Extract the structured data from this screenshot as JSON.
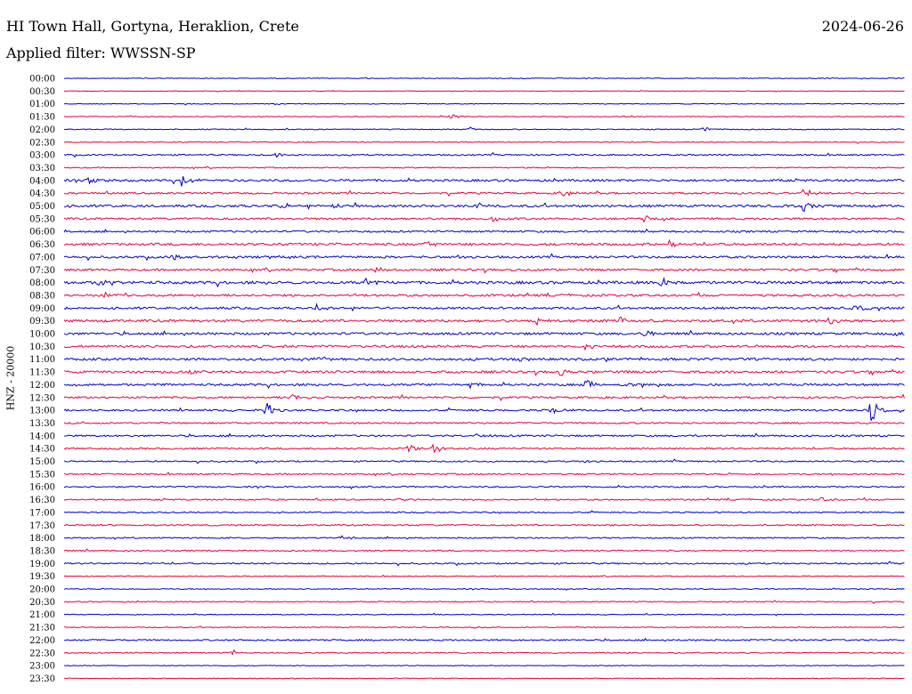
{
  "header": {
    "station": "HI Town Hall, Gortyna, Heraklion, Crete",
    "date": "2024-06-26",
    "filter": "Applied filter: WWSSN-SP"
  },
  "chart_data": {
    "type": "line",
    "title": "HI Town Hall, Gortyna, Heraklion, Crete",
    "date": "2024-06-26",
    "filter": "WWSSN-SP",
    "channel_label": "HNZ - 20000",
    "row_labels": [
      "00:00",
      "00:30",
      "01:00",
      "01:30",
      "02:00",
      "02:30",
      "03:00",
      "03:30",
      "04:00",
      "04:30",
      "05:00",
      "05:30",
      "06:00",
      "06:30",
      "07:00",
      "07:30",
      "08:00",
      "08:30",
      "09:00",
      "09:30",
      "10:00",
      "10:30",
      "11:00",
      "11:30",
      "12:00",
      "12:30",
      "13:00",
      "13:30",
      "14:00",
      "14:30",
      "15:00",
      "15:30",
      "16:00",
      "16:30",
      "17:00",
      "17:30",
      "18:00",
      "18:30",
      "19:00",
      "19:30",
      "20:00",
      "20:30",
      "21:00",
      "21:30",
      "22:00",
      "22:30",
      "23:00",
      "23:30"
    ],
    "row_colors": [
      "#0000cc",
      "#e8003c"
    ],
    "row_noise": [
      0.4,
      0.3,
      0.4,
      0.4,
      0.5,
      0.5,
      0.8,
      0.6,
      1.2,
      1.0,
      1.3,
      1.1,
      1.0,
      1.3,
      1.2,
      1.2,
      1.5,
      1.2,
      1.2,
      1.4,
      1.3,
      1.3,
      1.3,
      1.3,
      1.2,
      1.1,
      1.0,
      0.9,
      1.0,
      0.9,
      0.8,
      0.8,
      0.8,
      0.8,
      0.7,
      0.8,
      0.7,
      0.7,
      0.8,
      0.5,
      0.5,
      0.6,
      0.5,
      0.5,
      0.8,
      0.6,
      0.4,
      0.4
    ],
    "events": [
      {
        "row": 3,
        "t": 0.46,
        "amp": 3
      },
      {
        "row": 4,
        "t": 0.48,
        "amp": 3
      },
      {
        "row": 4,
        "t": 0.76,
        "amp": 4
      },
      {
        "row": 6,
        "t": 0.25,
        "amp": 3
      },
      {
        "row": 8,
        "t": 0.03,
        "amp": 5
      },
      {
        "row": 8,
        "t": 0.14,
        "amp": 7
      },
      {
        "row": 9,
        "t": 0.59,
        "amp": 6
      },
      {
        "row": 9,
        "t": 0.88,
        "amp": 6
      },
      {
        "row": 10,
        "t": 0.26,
        "amp": 4
      },
      {
        "row": 10,
        "t": 0.32,
        "amp": 4
      },
      {
        "row": 10,
        "t": 0.49,
        "amp": 5
      },
      {
        "row": 10,
        "t": 0.88,
        "amp": 7
      },
      {
        "row": 11,
        "t": 0.51,
        "amp": 4
      },
      {
        "row": 11,
        "t": 0.69,
        "amp": 4
      },
      {
        "row": 13,
        "t": 0.43,
        "amp": 4
      },
      {
        "row": 13,
        "t": 0.72,
        "amp": 4
      },
      {
        "row": 14,
        "t": 0.13,
        "amp": 4
      },
      {
        "row": 14,
        "t": 0.47,
        "amp": 3
      },
      {
        "row": 15,
        "t": 0.37,
        "amp": 4
      },
      {
        "row": 16,
        "t": 0.04,
        "amp": 6
      },
      {
        "row": 16,
        "t": 0.36,
        "amp": 6
      },
      {
        "row": 16,
        "t": 0.71,
        "amp": 7
      },
      {
        "row": 17,
        "t": 0.05,
        "amp": 4
      },
      {
        "row": 18,
        "t": 0.3,
        "amp": 4
      },
      {
        "row": 18,
        "t": 0.94,
        "amp": 5
      },
      {
        "row": 19,
        "t": 0.56,
        "amp": 5
      },
      {
        "row": 19,
        "t": 0.66,
        "amp": 5
      },
      {
        "row": 19,
        "t": 0.91,
        "amp": 5
      },
      {
        "row": 20,
        "t": 0.69,
        "amp": 7
      },
      {
        "row": 20,
        "t": 0.99,
        "amp": 5
      },
      {
        "row": 21,
        "t": 0.62,
        "amp": 5
      },
      {
        "row": 22,
        "t": 0.3,
        "amp": 5
      },
      {
        "row": 22,
        "t": 0.54,
        "amp": 4
      },
      {
        "row": 23,
        "t": 0.15,
        "amp": 4
      },
      {
        "row": 23,
        "t": 0.59,
        "amp": 5
      },
      {
        "row": 24,
        "t": 0.48,
        "amp": 4
      },
      {
        "row": 24,
        "t": 0.62,
        "amp": 7
      },
      {
        "row": 24,
        "t": 0.67,
        "amp": 5
      },
      {
        "row": 25,
        "t": 0.27,
        "amp": 5
      },
      {
        "row": 26,
        "t": 0.24,
        "amp": 9
      },
      {
        "row": 26,
        "t": 0.58,
        "amp": 5
      },
      {
        "row": 26,
        "t": 0.96,
        "amp": 13
      },
      {
        "row": 28,
        "t": 0.49,
        "amp": 3
      },
      {
        "row": 29,
        "t": 0.41,
        "amp": 5
      },
      {
        "row": 29,
        "t": 0.44,
        "amp": 6
      },
      {
        "row": 30,
        "t": 0.62,
        "amp": 3
      },
      {
        "row": 33,
        "t": 0.4,
        "amp": 3
      },
      {
        "row": 33,
        "t": 0.9,
        "amp": 3
      },
      {
        "row": 36,
        "t": 0.33,
        "amp": 3
      },
      {
        "row": 45,
        "t": 0.2,
        "amp": 4
      }
    ]
  }
}
